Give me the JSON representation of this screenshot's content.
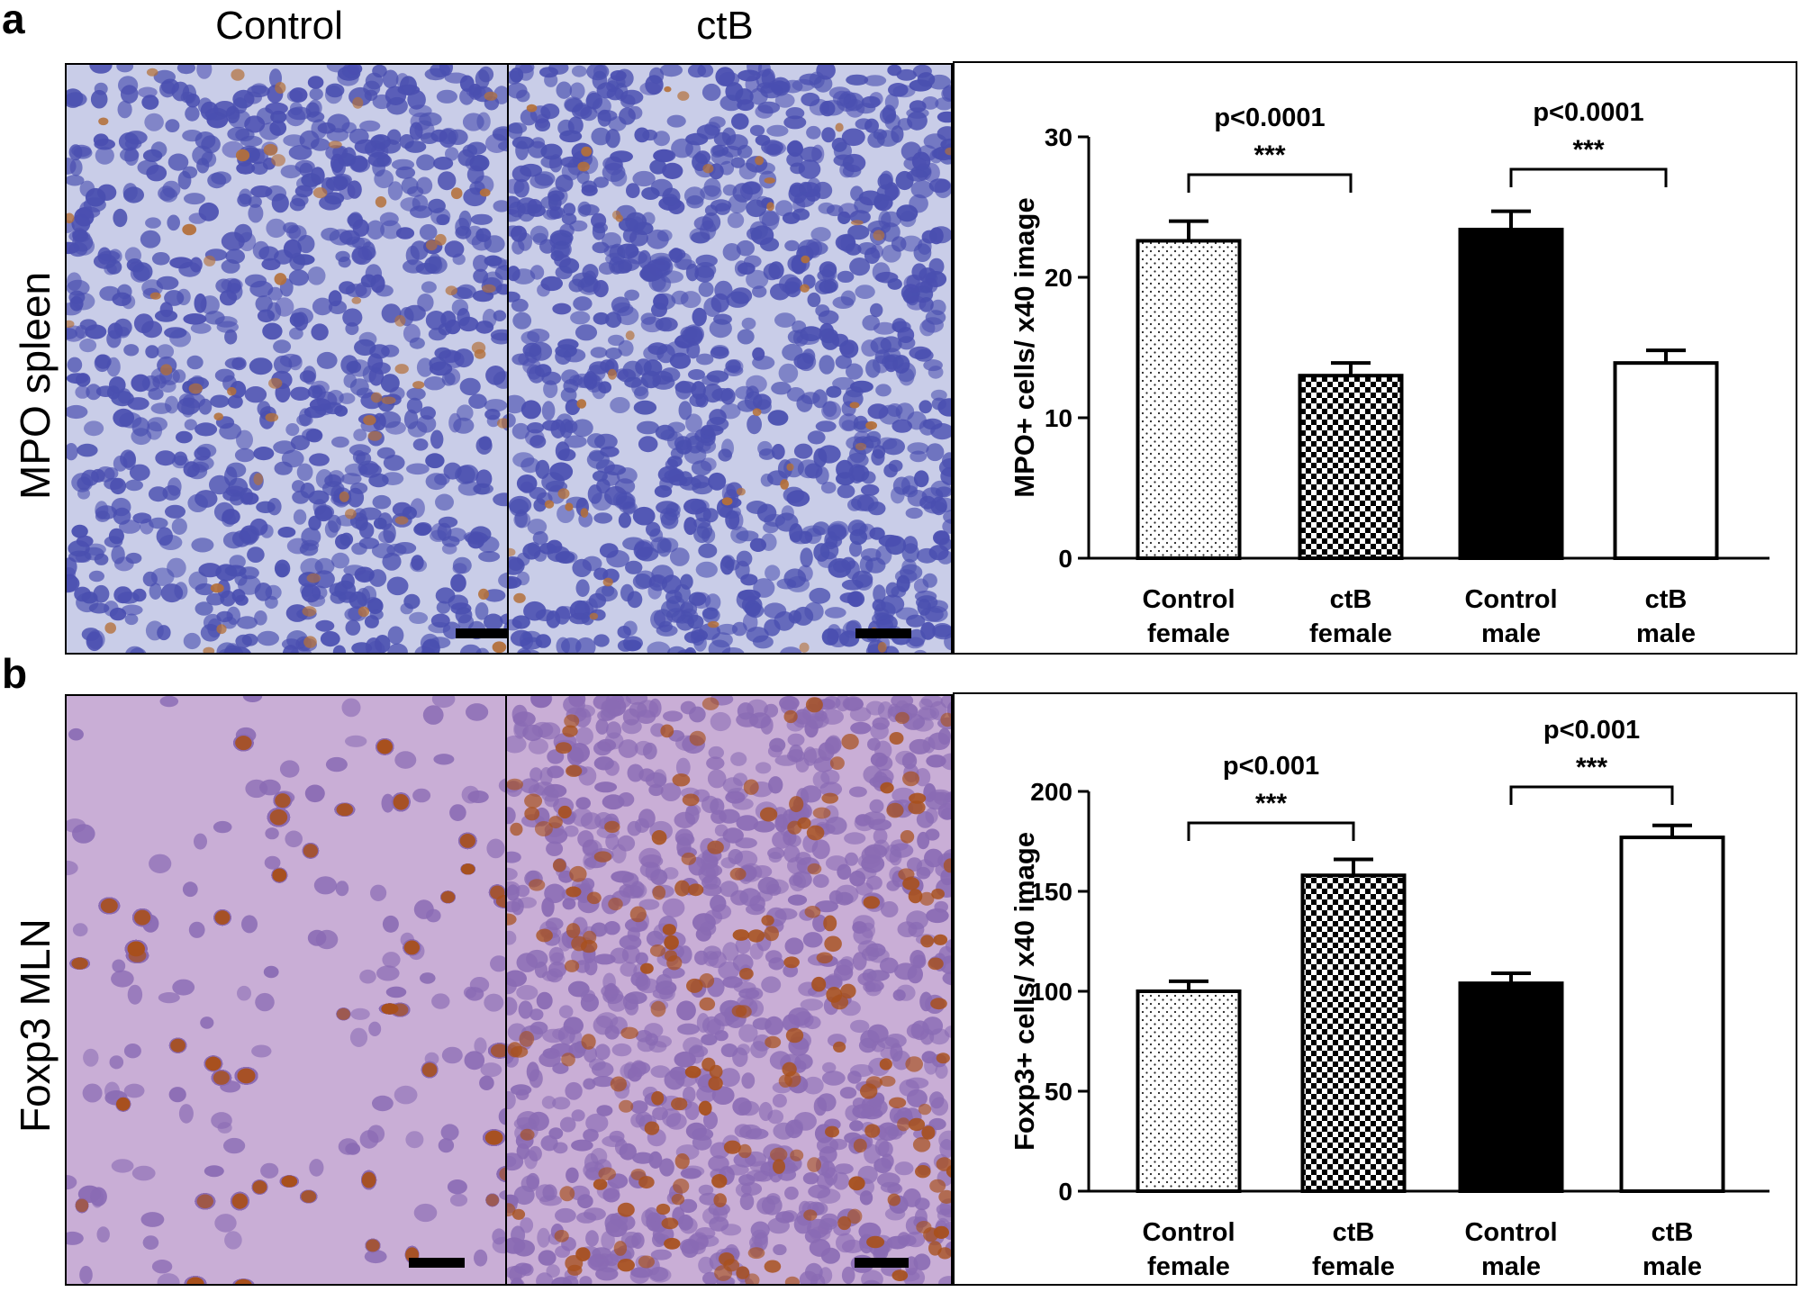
{
  "panels": {
    "a": {
      "letter": "a",
      "col_control": "Control",
      "col_ctb": "ctB",
      "row_label": "MPO spleen"
    },
    "b": {
      "letter": "b",
      "row_label": "Foxp3 MLN"
    }
  },
  "colors": {
    "mpo_background": "#c9cde8",
    "mpo_nucleus": "#4a4fb0",
    "mpo_stain": "#b4703a",
    "foxp3_background": "#c9aed6",
    "foxp3_nucleus": "#8a6bb4",
    "foxp3_stain": "#a8501c",
    "bar_black": "#000000"
  },
  "chart_data": [
    {
      "type": "bar",
      "categories": [
        "Control female",
        "ctB female",
        "Control male",
        "ctB male"
      ],
      "category_lines": [
        [
          "Control",
          "female"
        ],
        [
          "ctB",
          "female"
        ],
        [
          "Control",
          "male"
        ],
        [
          "ctB",
          "male"
        ]
      ],
      "values": [
        22.6,
        13.0,
        23.4,
        13.9
      ],
      "errors": [
        1.4,
        0.9,
        1.3,
        0.9
      ],
      "fills": [
        "dots",
        "checker",
        "black",
        "white"
      ],
      "ylabel": "MPO+ cells/ x40 image",
      "xlabel": "",
      "ylim": [
        0,
        30
      ],
      "yticks": [
        0,
        10,
        20,
        30
      ],
      "annotations": [
        {
          "pair": [
            0,
            1
          ],
          "p_text": "p<0.0001",
          "stars": "***"
        },
        {
          "pair": [
            2,
            3
          ],
          "p_text": "p<0.0001",
          "stars": "***"
        }
      ]
    },
    {
      "type": "bar",
      "categories": [
        "Control female",
        "ctB female",
        "Control male",
        "ctB male"
      ],
      "category_lines": [
        [
          "Control",
          "female"
        ],
        [
          "ctB",
          "female"
        ],
        [
          "Control",
          "male"
        ],
        [
          "ctB",
          "male"
        ]
      ],
      "values": [
        100,
        158,
        104,
        177
      ],
      "errors": [
        5,
        8,
        5,
        6
      ],
      "fills": [
        "dots",
        "checker",
        "black",
        "white"
      ],
      "ylabel": "Foxp3+ cells/ x40 image",
      "xlabel": "",
      "ylim": [
        0,
        200
      ],
      "yticks": [
        0,
        50,
        100,
        150,
        200
      ],
      "annotations": [
        {
          "pair": [
            0,
            1
          ],
          "p_text": "p<0.001",
          "stars": "***"
        },
        {
          "pair": [
            2,
            3
          ],
          "p_text": "p<0.001",
          "stars": "***"
        }
      ]
    }
  ]
}
